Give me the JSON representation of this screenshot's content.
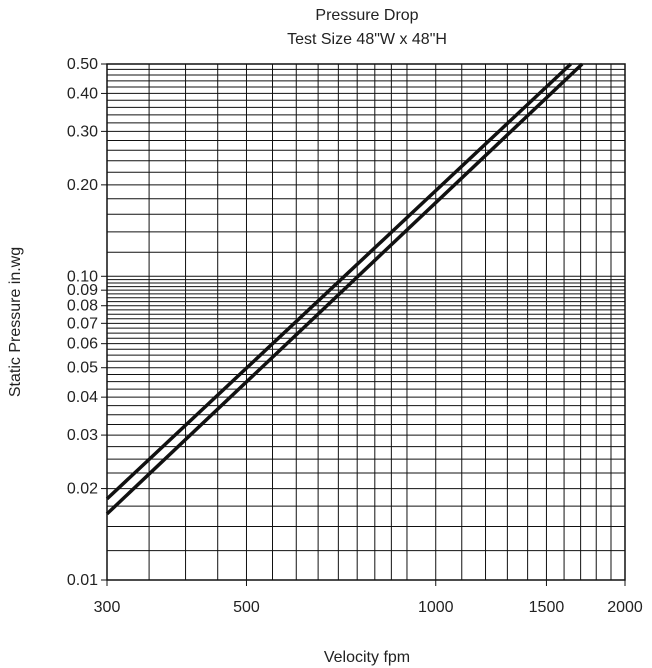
{
  "chart_data": {
    "type": "line",
    "title": "Pressure Drop",
    "subtitle": "Test Size 48\"W x 48\"H",
    "xlabel": "Velocity fpm",
    "ylabel": "Static Pressure in.wg",
    "x_scale": "log",
    "y_scale": "log",
    "xlim": [
      300,
      2000
    ],
    "ylim": [
      0.01,
      0.5
    ],
    "x_ticks": [
      300,
      500,
      1000,
      1500,
      2000
    ],
    "x_tick_labels": [
      "300",
      "500",
      "1000",
      "1500",
      "2000"
    ],
    "y_ticks": [
      0.01,
      0.02,
      0.03,
      0.04,
      0.05,
      0.06,
      0.07,
      0.08,
      0.09,
      0.1,
      0.2,
      0.3,
      0.4,
      0.5
    ],
    "y_tick_labels": [
      "0.01",
      "0.02",
      "0.03",
      "0.04",
      "0.05",
      "0.06",
      "0.07",
      "0.08",
      "0.09",
      "0.10",
      "0.20",
      "0.30",
      "0.40",
      "0.50"
    ],
    "grid": true,
    "line_color": "#111111",
    "grid_color": "#111111",
    "series": [
      {
        "x": [
          300,
          1640
        ],
        "y": [
          0.0185,
          0.5
        ]
      },
      {
        "x": [
          300,
          1710
        ],
        "y": [
          0.0165,
          0.5
        ]
      }
    ]
  }
}
